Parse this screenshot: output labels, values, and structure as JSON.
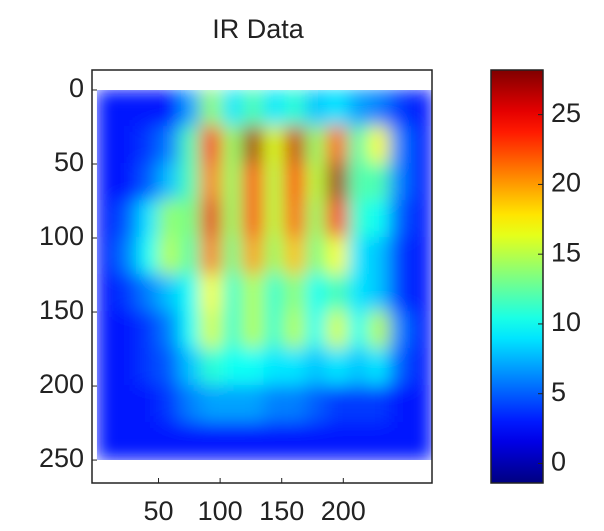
{
  "chart_data": {
    "type": "heatmap",
    "title": "IR Data",
    "colormap": "jet",
    "x_extent": [
      0,
      272
    ],
    "y_extent": [
      0,
      250
    ],
    "xlim": [
      -4,
      272
    ],
    "ylim": [
      -13.5,
      265.5
    ],
    "y_reversed": true,
    "xticks": [
      50,
      100,
      150,
      200
    ],
    "yticks": [
      0,
      50,
      100,
      150,
      200,
      250
    ],
    "clim": [
      -1.4,
      28.2
    ],
    "colorbar_ticks": [
      0,
      5,
      10,
      15,
      20,
      25
    ],
    "values": [
      [
        3,
        3,
        3,
        3,
        7,
        14,
        9,
        12,
        9,
        11,
        8,
        9,
        7,
        6,
        4,
        3
      ],
      [
        3,
        3,
        4,
        6,
        12,
        24,
        14,
        27,
        16,
        26,
        14,
        22,
        12,
        17,
        6,
        3
      ],
      [
        3,
        3,
        5,
        8,
        12,
        21,
        14,
        23,
        15,
        23,
        15,
        27,
        12,
        12,
        6,
        3
      ],
      [
        3,
        5,
        9,
        14,
        13,
        25,
        14,
        23,
        15,
        22,
        14,
        24,
        11,
        10,
        5,
        3
      ],
      [
        3,
        6,
        10,
        15,
        12,
        21,
        13,
        20,
        14,
        19,
        13,
        17,
        9,
        8,
        4,
        3
      ],
      [
        3,
        4,
        6,
        8,
        10,
        17,
        11,
        15,
        11,
        14,
        10,
        12,
        9,
        8,
        4,
        3
      ],
      [
        3,
        3,
        4,
        6,
        10,
        16,
        11,
        15,
        11,
        15,
        10,
        16,
        10,
        15,
        6,
        3
      ],
      [
        3,
        3,
        4,
        5,
        8,
        11,
        10,
        10,
        9,
        9,
        8,
        9,
        8,
        9,
        5,
        3
      ],
      [
        3,
        3,
        3,
        4,
        6,
        7,
        7,
        7,
        6,
        6,
        5,
        4,
        4,
        4,
        3,
        3
      ],
      [
        3,
        3,
        3,
        3,
        3,
        3,
        3,
        3,
        3,
        3,
        3,
        3,
        3,
        3,
        3,
        3
      ]
    ]
  }
}
